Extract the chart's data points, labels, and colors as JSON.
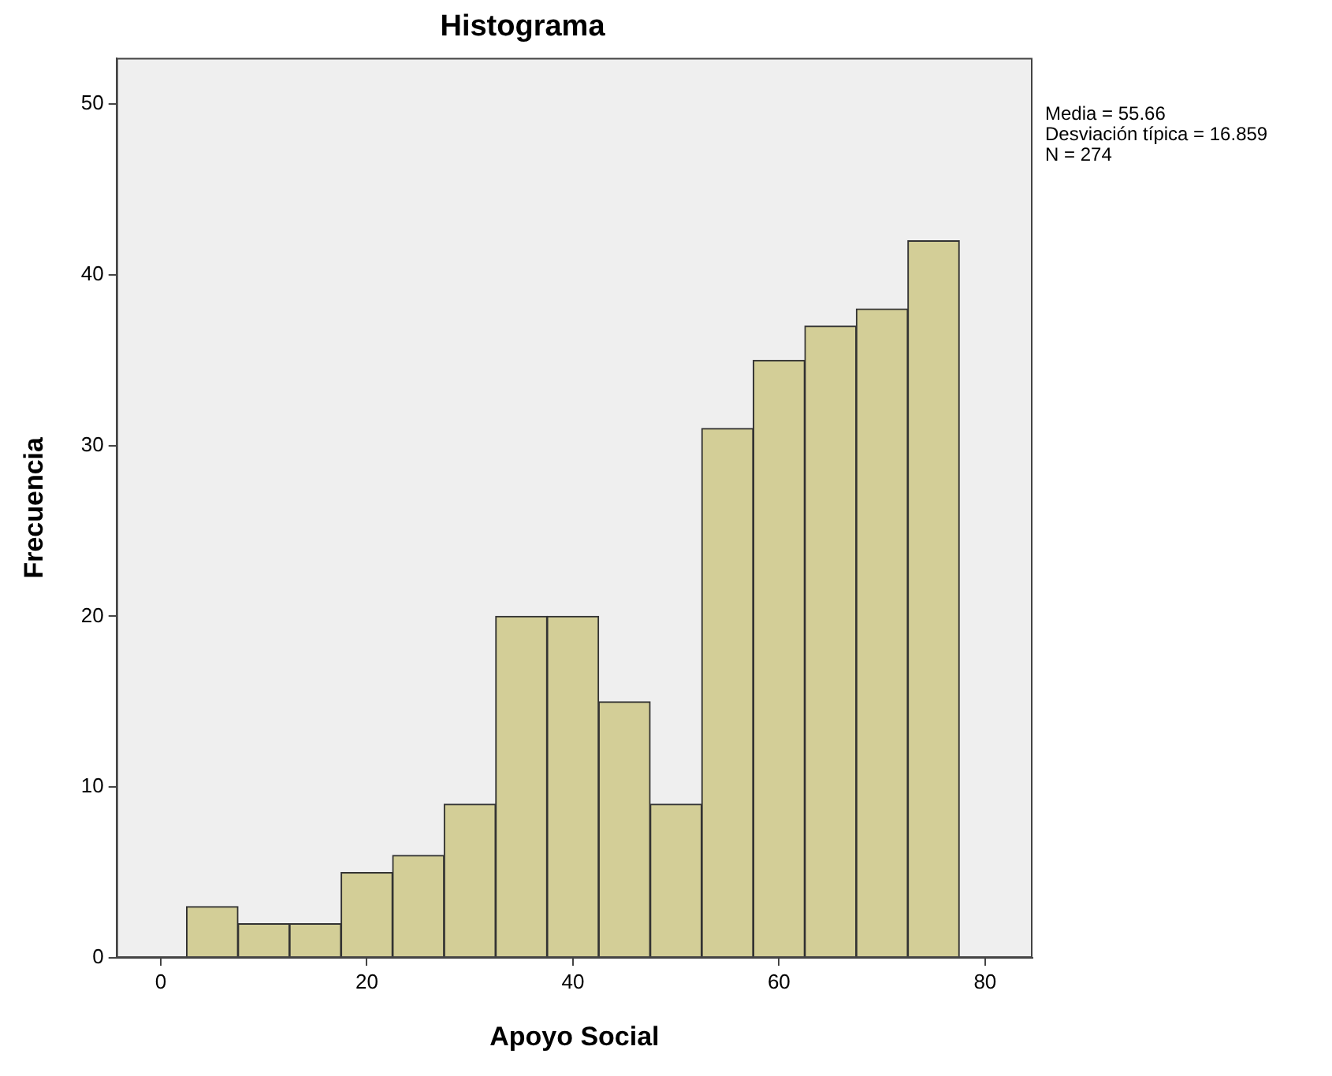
{
  "chart_data": {
    "type": "histogram",
    "title": "Histograma",
    "xlabel": "Apoyo Social",
    "ylabel": "Frecuencia",
    "bins": [
      2.5,
      7.5,
      12.5,
      17.5,
      22.5,
      27.5,
      32.5,
      37.5,
      42.5,
      47.5,
      52.5,
      57.5,
      62.5,
      67.5,
      72.5,
      77.5
    ],
    "values": [
      3,
      2,
      2,
      5,
      6,
      9,
      20,
      20,
      15,
      9,
      31,
      35,
      37,
      38,
      42
    ],
    "color": "#d3ce97",
    "xlim": [
      -4.3,
      84.6
    ],
    "xticks": [
      0,
      20,
      40,
      60,
      80
    ],
    "ylim": [
      0,
      52.7
    ],
    "yticks": [
      0,
      10,
      20,
      30,
      40,
      50
    ],
    "grid": false,
    "legend": false,
    "annotations": [
      "Media = 55.66",
      "Desviación típica = 16.859",
      "N = 274"
    ]
  }
}
